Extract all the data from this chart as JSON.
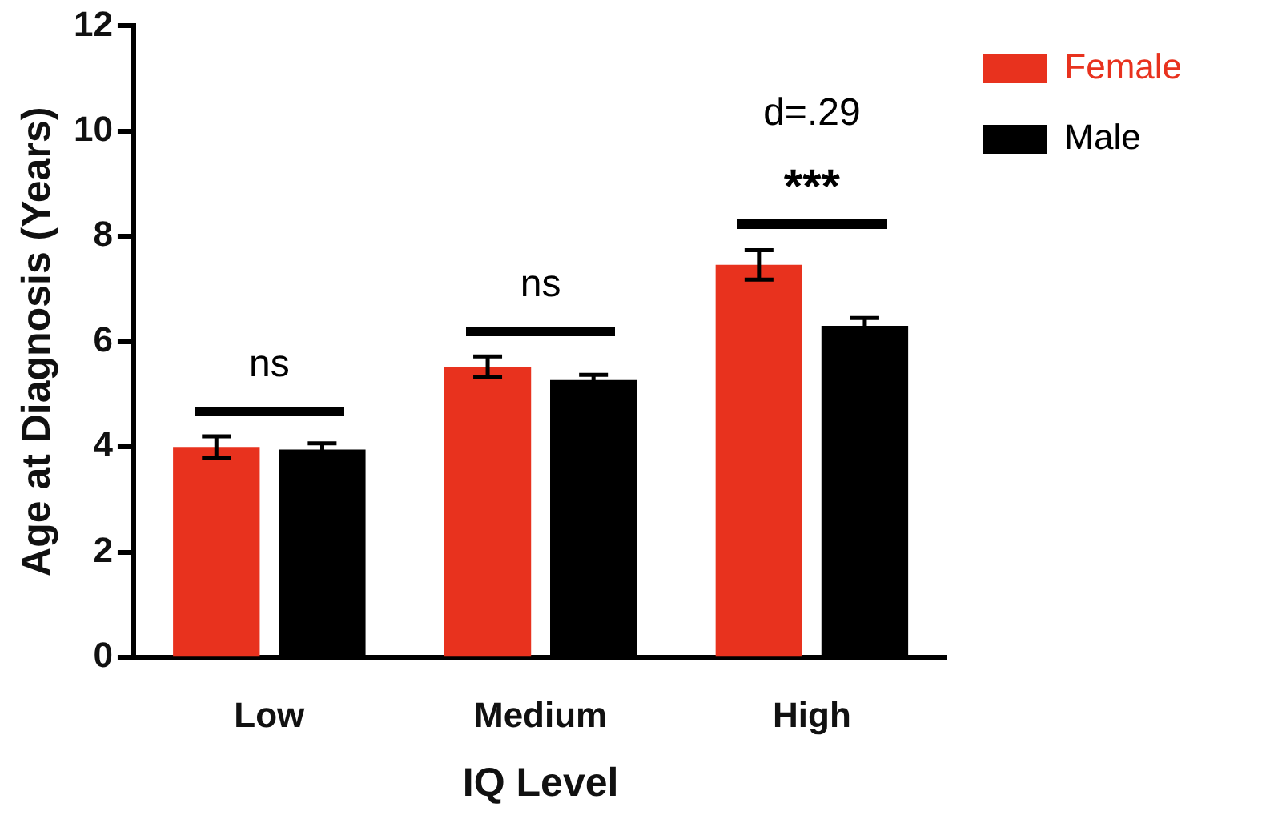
{
  "chart_data": {
    "type": "bar",
    "xlabel": "IQ Level",
    "ylabel": "Age at Diagnosis (Years)",
    "categories": [
      "Low",
      "Medium",
      "High"
    ],
    "series": [
      {
        "name": "Female",
        "color": "#e8321e",
        "values": [
          4.0,
          5.52,
          7.46
        ],
        "errors": [
          0.2,
          0.2,
          0.28
        ]
      },
      {
        "name": "Male",
        "color": "#000000",
        "values": [
          3.95,
          5.27,
          6.3
        ],
        "errors": [
          0.12,
          0.1,
          0.15
        ]
      }
    ],
    "ylim": [
      0,
      12
    ],
    "yticks": [
      0,
      2,
      4,
      6,
      8,
      10,
      12
    ],
    "grid": false,
    "legend": "top right",
    "annotations": [
      "ns",
      "ns",
      "***",
      "d=.29"
    ]
  }
}
